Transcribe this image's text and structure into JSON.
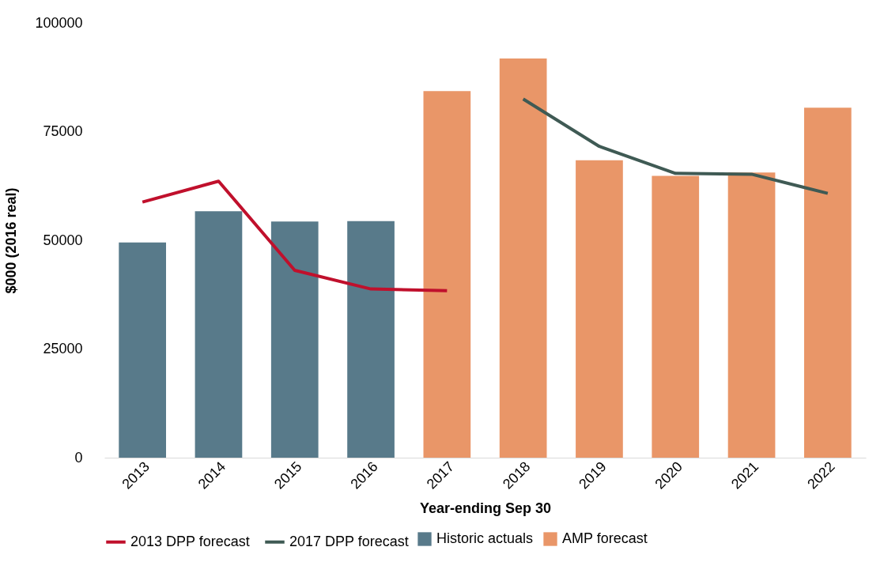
{
  "chart_data": {
    "type": "bar",
    "xlabel": "Year-ending Sep 30",
    "ylabel": "$000 (2016 real)",
    "categories": [
      "2013",
      "2014",
      "2015",
      "2016",
      "2017",
      "2018",
      "2019",
      "2020",
      "2021",
      "2022"
    ],
    "series": [
      {
        "name": "Historic actuals",
        "color": "#587a8a",
        "values": [
          49500,
          56700,
          54300,
          54400,
          null,
          null,
          null,
          null,
          null,
          null
        ]
      },
      {
        "name": "AMP forecast",
        "color": "#e99668",
        "values": [
          null,
          null,
          null,
          null,
          84300,
          91800,
          68400,
          64800,
          65600,
          80500
        ]
      },
      {
        "name": "2013 DPP forecast",
        "type": "line",
        "color": "#c0102c",
        "values": [
          58800,
          63600,
          43100,
          38800,
          38400,
          null,
          null,
          null,
          null,
          null
        ]
      },
      {
        "name": "2017 DPP forecast",
        "type": "line",
        "color": "#3f5a54",
        "values": [
          null,
          null,
          null,
          null,
          null,
          82500,
          71600,
          65400,
          65200,
          60800
        ]
      }
    ],
    "ylim": [
      0,
      100000
    ],
    "yticks": [
      0,
      25000,
      50000,
      75000,
      100000
    ],
    "grid": false,
    "legend": "bottom"
  }
}
